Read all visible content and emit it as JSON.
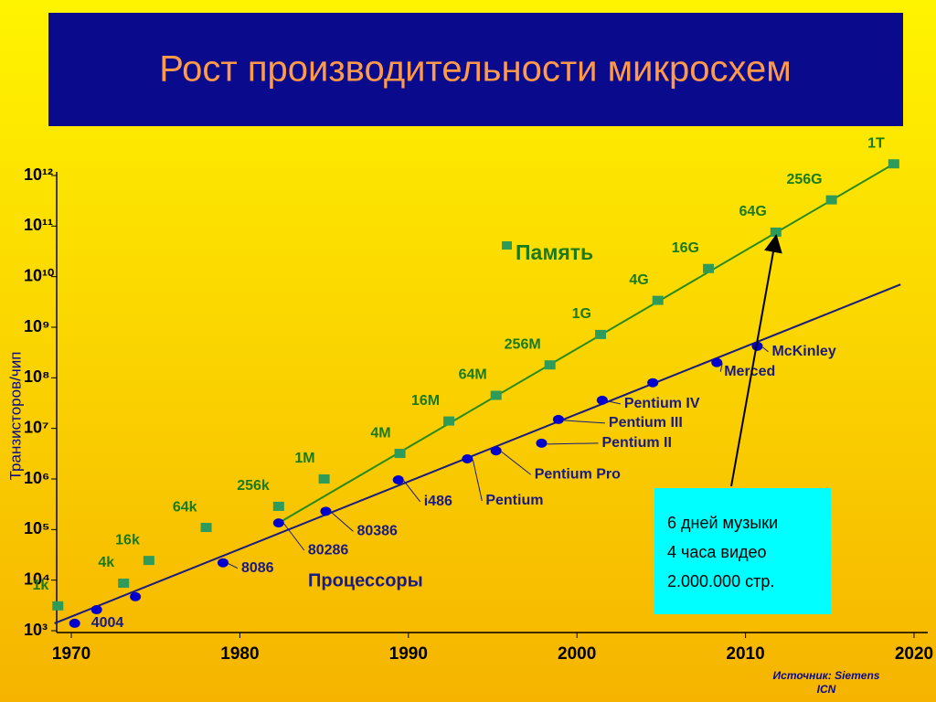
{
  "chart_data": {
    "type": "scatter",
    "title": "Рост  производительности микросхем",
    "y_label": "Транзисторов/чип",
    "log_y": true,
    "xlim": [
      1969,
      2021
    ],
    "xticks": [
      1970,
      1980,
      1990,
      2000,
      2010,
      2020
    ],
    "ylim": [
      1000,
      1000000000000
    ],
    "yticks": [
      {
        "value": 1000,
        "label": "10³"
      },
      {
        "value": 10000,
        "label": "10⁴"
      },
      {
        "value": 100000,
        "label": "10⁵"
      },
      {
        "value": 1000000,
        "label": "10⁶"
      },
      {
        "value": 10000000,
        "label": "10⁷"
      },
      {
        "value": 100000000,
        "label": "10⁸"
      },
      {
        "value": 1000000000,
        "label": "10⁹"
      },
      {
        "value": 10000000000,
        "label": "10¹⁰"
      },
      {
        "value": 100000000000,
        "label": "10¹¹"
      },
      {
        "value": 1000000000000,
        "label": "10¹²"
      }
    ],
    "series": [
      {
        "name": "Память",
        "color": "#2e9b5a",
        "marker": "square",
        "line_color": "#2a8a1e",
        "x": [
          1969.2,
          1973.1,
          1974.6,
          1978.0,
          1982.3,
          1985.0,
          1989.5,
          1992.4,
          1995.2,
          1998.4,
          2001.4,
          2004.8,
          2007.8,
          2011.8,
          2015.1,
          2018.8
        ],
        "values": [
          3100,
          8700,
          24500,
          110000,
          288000,
          1000000,
          3200000,
          14000000,
          45000000,
          180000000,
          720000000,
          3400000000,
          14500000000,
          76000000000,
          330000000000,
          1700000000000
        ],
        "names": [
          "1k",
          "4k",
          "16k",
          "64k",
          "256k",
          "1M",
          "4M",
          "16M",
          "64M",
          "256M",
          "1G",
          "4G",
          "16G",
          "64G",
          "256G",
          "1T"
        ],
        "trend": {
          "x": [
            1982.3,
            2018.8
          ],
          "values": [
            135000,
            1700000000000
          ]
        }
      },
      {
        "name": "Процессоры",
        "color": "#0000cc",
        "marker": "circle",
        "line_color": "#1a1a80",
        "x": [
          1970.2,
          1971.5,
          1973.8,
          1979.0,
          1982.3,
          1985.1,
          1989.4,
          1993.5,
          1995.2,
          1997.9,
          1998.9,
          2001.5,
          2004.5,
          2008.3,
          2010.7
        ],
        "values": [
          1400,
          2600,
          4700,
          22000,
          135000,
          230000,
          960000,
          2500000,
          3600000,
          5100000,
          15000000,
          36000000,
          80000000,
          200000000,
          420000000
        ],
        "names": [
          "4004",
          null,
          null,
          "8086",
          "80286",
          "80386",
          "i486",
          "Pentium",
          "Pentium Pro",
          "Pentium II",
          "Pentium III",
          "Pentium IV",
          null,
          "Merced",
          "McKinley"
        ],
        "trend": {
          "x": [
            1969.0,
            2019.2
          ],
          "values": [
            1400,
            7000000000
          ]
        }
      }
    ],
    "annotation": {
      "lines": [
        "6 дней музыки",
        "4 часа видео",
        "2.000.000 стр."
      ],
      "points_to": "chart_data.series.0.values.13"
    },
    "source": [
      "Источник: Siemens",
      "ICN"
    ]
  }
}
